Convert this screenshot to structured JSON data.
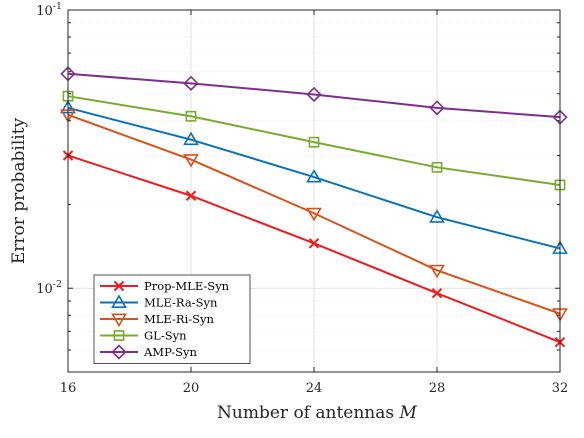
{
  "chart_data": {
    "type": "line",
    "x": [
      16,
      20,
      24,
      28,
      32
    ],
    "xticks": [
      "16",
      "20",
      "24",
      "28",
      "32"
    ],
    "xlabel": "Number of antennas",
    "xlabel_symbol": "M",
    "ylabel": "Error probability",
    "yscale": "log",
    "ylim": [
      0.005,
      0.1
    ],
    "ytick_labels": [
      {
        "base": "10",
        "exp": "-2",
        "value": 0.01
      },
      {
        "base": "10",
        "exp": "-1",
        "value": 0.1
      }
    ],
    "grid": true,
    "legend_position": "bottom-left",
    "series": [
      {
        "name": "Prop-MLE-Syn",
        "color": "#ee1c1c",
        "marker": "x",
        "values": [
          0.03,
          0.0215,
          0.0145,
          0.0096,
          0.0064
        ]
      },
      {
        "name": "MLE-Ra-Syn",
        "color": "#0a72bd",
        "marker": "triangle-up",
        "values": [
          0.0445,
          0.0342,
          0.0251,
          0.018,
          0.0139
        ]
      },
      {
        "name": "MLE-Ri-Syn",
        "color": "#d95219",
        "marker": "triangle-down",
        "values": [
          0.042,
          0.029,
          0.0186,
          0.0116,
          0.0081
        ]
      },
      {
        "name": "GL-Syn",
        "color": "#77ac30",
        "marker": "square",
        "values": [
          0.049,
          0.0415,
          0.0335,
          0.0272,
          0.0235
        ]
      },
      {
        "name": "AMP-Syn",
        "color": "#7e2f8e",
        "marker": "diamond",
        "values": [
          0.059,
          0.0545,
          0.0497,
          0.0445,
          0.0412
        ]
      }
    ]
  }
}
